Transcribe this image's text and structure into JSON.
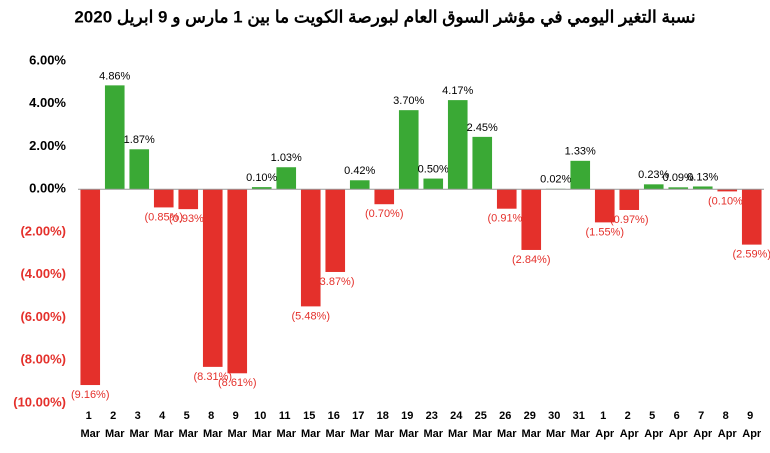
{
  "chart_data": {
    "type": "bar",
    "title": "نسبة التغير اليومي في مؤشر السوق العام لبورصة الكويت ما بين 1 مارس و 9 ابريل 2020",
    "categories": [
      "1 Mar",
      "2 Mar",
      "3 Mar",
      "4 Mar",
      "5 Mar",
      "8 Mar",
      "9 Mar",
      "10 Mar",
      "11 Mar",
      "15 Mar",
      "16 Mar",
      "17 Mar",
      "18 Mar",
      "19 Mar",
      "23 Mar",
      "24 Mar",
      "25 Mar",
      "26 Mar",
      "29 Mar",
      "30 Mar",
      "31 Mar",
      "1 Apr",
      "2 Apr",
      "5 Apr",
      "6 Apr",
      "7 Apr",
      "8 Apr",
      "9 Apr"
    ],
    "values": [
      -9.16,
      4.86,
      1.87,
      -0.85,
      -0.93,
      -8.31,
      -8.61,
      0.1,
      1.03,
      -5.48,
      -3.87,
      0.42,
      -0.7,
      3.7,
      0.5,
      4.17,
      2.45,
      -0.91,
      -2.84,
      0.02,
      1.33,
      -1.55,
      -0.97,
      0.23,
      0.09,
      0.13,
      -0.1,
      -2.59
    ],
    "value_labels": [
      "(9.16%)",
      "4.86%",
      "1.87%",
      "(0.85%)",
      "(0.93%)",
      "(8.31%)",
      "(8.61%)",
      "0.10%",
      "1.03%",
      "(5.48%)",
      "(3.87%)",
      "0.42%",
      "(0.70%)",
      "3.70%",
      "0.50%",
      "4.17%",
      "2.45%",
      "(0.91%)",
      "(2.84%)",
      "0.02%",
      "1.33%",
      "(1.55%)",
      "(0.97%)",
      "0.23%",
      "0.09%",
      "0.13%",
      "(0.10%)",
      "(2.59%)"
    ],
    "positive_color": "#3aa935",
    "negative_color": "#e4302b",
    "ylim": [
      -10,
      6
    ],
    "yticks": [
      {
        "value": 6,
        "label": "6.00%"
      },
      {
        "value": 4,
        "label": "4.00%"
      },
      {
        "value": 2,
        "label": "2.00%"
      },
      {
        "value": 0,
        "label": "0.00%"
      },
      {
        "value": -2,
        "label": "(2.00%)"
      },
      {
        "value": -4,
        "label": "(4.00%)"
      },
      {
        "value": -6,
        "label": "(6.00%)"
      },
      {
        "value": -8,
        "label": "(8.00%)"
      },
      {
        "value": -10,
        "label": "(10.00%)"
      }
    ]
  }
}
